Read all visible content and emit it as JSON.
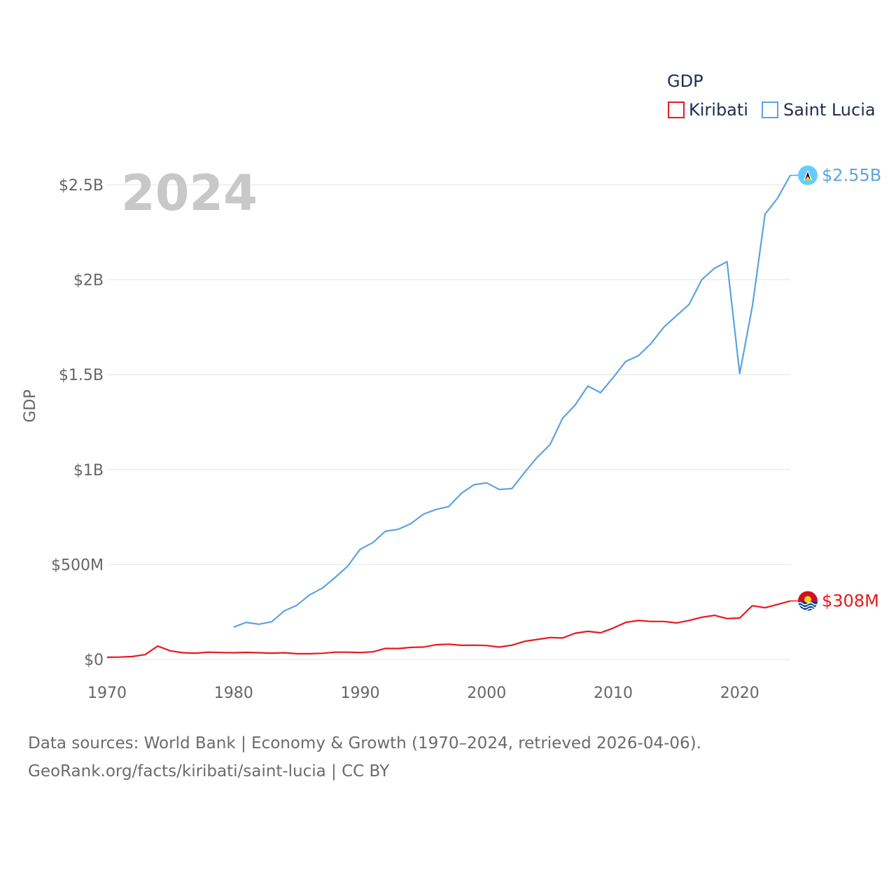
{
  "chart_data": {
    "type": "line",
    "title": "GDP",
    "year_label": "2024",
    "ylabel": "GDP",
    "xlabel": "",
    "xlim": [
      1970,
      2024
    ],
    "ylim": [
      0,
      2600000000
    ],
    "x_ticks": [
      1970,
      1980,
      1990,
      2000,
      2010,
      2020
    ],
    "x_tick_labels": [
      "1970",
      "1980",
      "1990",
      "2000",
      "2010",
      "2020"
    ],
    "y_ticks": [
      0,
      500000000,
      1000000000,
      1500000000,
      2000000000,
      2500000000
    ],
    "y_tick_labels": [
      "$0",
      "$500M",
      "$1B",
      "$1.5B",
      "$2B",
      "$2.5B"
    ],
    "legend": {
      "title": "GDP",
      "position": "top-right",
      "entries": [
        "Kiribati",
        "Saint Lucia"
      ]
    },
    "series": [
      {
        "name": "Kiribati",
        "color": "#e8191e",
        "end_label": "$308M",
        "x_start": 1970,
        "values_millions": [
          11,
          12,
          15,
          25,
          70,
          45,
          35,
          33,
          38,
          36,
          35,
          37,
          35,
          33,
          35,
          30,
          30,
          32,
          38,
          38,
          36,
          40,
          58,
          57,
          63,
          65,
          77,
          80,
          74,
          75,
          73,
          65,
          75,
          95,
          105,
          115,
          113,
          138,
          148,
          140,
          165,
          195,
          205,
          200,
          200,
          192,
          205,
          222,
          232,
          215,
          218,
          283,
          272,
          290,
          308
        ]
      },
      {
        "name": "Saint Lucia",
        "color": "#5ea2e0",
        "end_label": "$2.55B",
        "x_start": 1980,
        "values_millions": [
          170,
          195,
          185,
          198,
          255,
          285,
          340,
          375,
          430,
          490,
          580,
          615,
          675,
          685,
          715,
          765,
          790,
          805,
          875,
          920,
          930,
          895,
          900,
          985,
          1065,
          1130,
          1270,
          1340,
          1440,
          1405,
          1485,
          1570,
          1600,
          1665,
          1750,
          1810,
          1870,
          2000,
          2060,
          2095,
          1505,
          1860,
          2345,
          2430,
          2550
        ]
      }
    ]
  },
  "footer": {
    "line1": "Data sources: World Bank | Economy & Growth (1970–2024, retrieved 2026-04-06).",
    "line2": "GeoRank.org/facts/kiribati/saint-lucia | CC BY"
  }
}
